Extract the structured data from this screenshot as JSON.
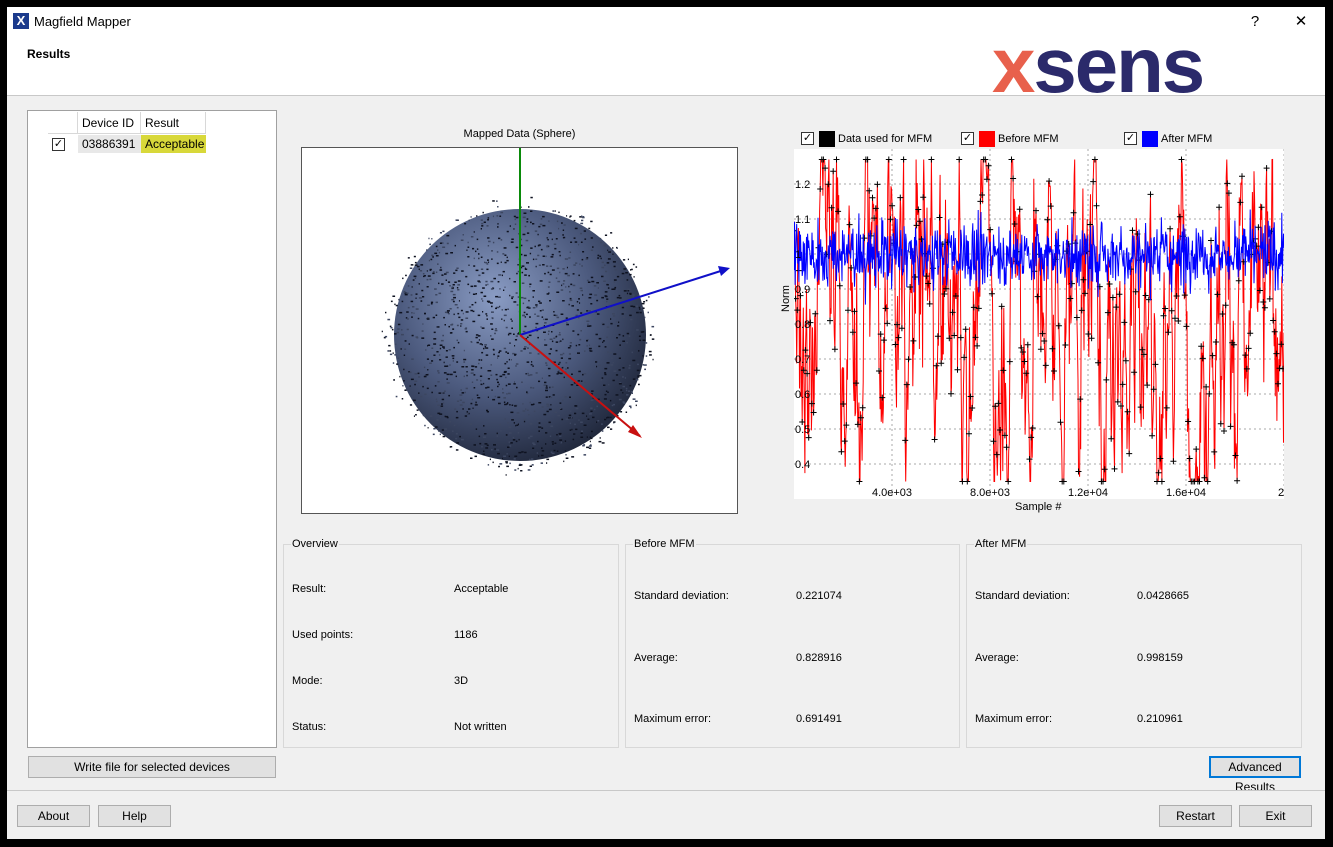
{
  "window": {
    "title": "Magfield Mapper",
    "help_glyph": "?",
    "close_glyph": "✕"
  },
  "header": {
    "page_title": "Results",
    "logo_text": "xsens"
  },
  "devices": {
    "columns": [
      "Device ID",
      "Result"
    ],
    "rows": [
      {
        "checked": true,
        "device_id": "03886391",
        "result": "Acceptable"
      }
    ],
    "write_button": "Write file for selected devices"
  },
  "sphere": {
    "title": "Mapped Data (Sphere)"
  },
  "plot": {
    "legend": [
      {
        "label": "Data used for MFM",
        "color": "#000000",
        "checked": true
      },
      {
        "label": "Before MFM",
        "color": "#ff0000",
        "checked": true
      },
      {
        "label": "After MFM",
        "color": "#0000ff",
        "checked": true
      }
    ],
    "ylabel": "Norm",
    "xlabel": "Sample #",
    "yticks": [
      "1.2",
      "1.1",
      "1",
      "0.9",
      "0.8",
      "0.7",
      "0.6",
      "0.5",
      "0.4"
    ],
    "xticks": [
      "4.0e+03",
      "8.0e+03",
      "1.2e+04",
      "1.6e+04",
      "2"
    ]
  },
  "chart_data": {
    "type": "line",
    "xlabel": "Sample #",
    "ylabel": "Norm",
    "xlim": [
      0,
      20000
    ],
    "ylim": [
      0.3,
      1.3
    ],
    "series": [
      {
        "name": "Data used for MFM",
        "style": "markers",
        "mean": 0.828916,
        "std": 0.221074
      },
      {
        "name": "Before MFM",
        "mean": 0.828916,
        "std": 0.221074
      },
      {
        "name": "After MFM",
        "mean": 0.998159,
        "std": 0.0428665
      }
    ]
  },
  "overview": {
    "title": "Overview",
    "items": [
      {
        "label": "Result:",
        "value": "Acceptable"
      },
      {
        "label": "Used points:",
        "value": "1186"
      },
      {
        "label": "Mode:",
        "value": "3D"
      },
      {
        "label": "Status:",
        "value": "Not written"
      }
    ]
  },
  "before": {
    "title": "Before MFM",
    "items": [
      {
        "label": "Standard deviation:",
        "value": "0.221074"
      },
      {
        "label": "Average:",
        "value": "0.828916"
      },
      {
        "label": "Maximum error:",
        "value": "0.691491"
      }
    ]
  },
  "after": {
    "title": "After MFM",
    "items": [
      {
        "label": "Standard deviation:",
        "value": "0.0428665"
      },
      {
        "label": "Average:",
        "value": "0.998159"
      },
      {
        "label": "Maximum error:",
        "value": "0.210961"
      }
    ]
  },
  "buttons": {
    "advanced": "Advanced Results",
    "about": "About",
    "help": "Help",
    "restart": "Restart",
    "exit": "Exit"
  },
  "colors": {
    "accent": "#0078d7",
    "acceptable_bg": "#d8d83a",
    "logo_x": "#e8604c",
    "logo_text": "#2b2a6b"
  }
}
